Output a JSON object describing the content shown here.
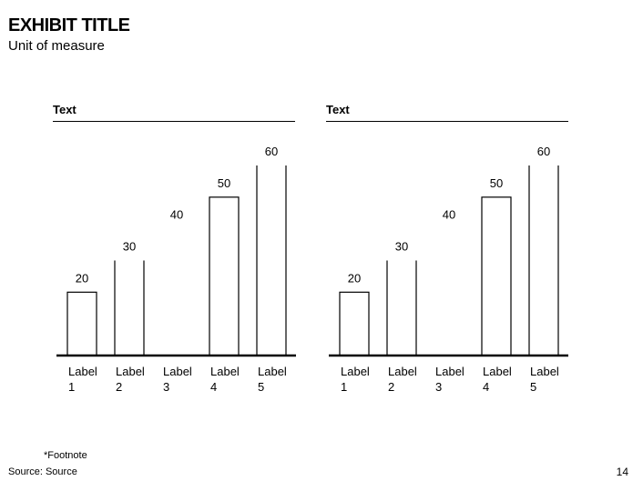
{
  "header": {
    "title": "EXHIBIT TITLE",
    "subtitle": "Unit of measure"
  },
  "footer": {
    "footnote": "*Footnote",
    "source": "Source: Source",
    "page_number": "14"
  },
  "chart_data": [
    {
      "type": "bar",
      "title": "Text",
      "categories": [
        "Label 1",
        "Label 2",
        "Label 3",
        "Label 4",
        "Label 5"
      ],
      "values": [
        20,
        30,
        40,
        50,
        60
      ],
      "ylim": [
        0,
        60
      ],
      "grid": false,
      "data_labels": true
    },
    {
      "type": "bar",
      "title": "Text",
      "categories": [
        "Label 1",
        "Label 2",
        "Label 3",
        "Label 4",
        "Label 5"
      ],
      "values": [
        20,
        30,
        40,
        50,
        60
      ],
      "ylim": [
        0,
        60
      ],
      "grid": false,
      "data_labels": true
    }
  ]
}
